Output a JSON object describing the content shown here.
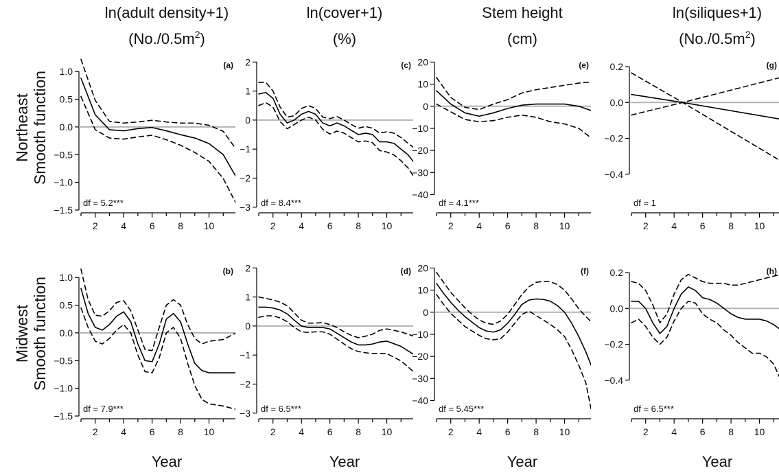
{
  "column_headers": [
    {
      "line1": "ln(adult density+1)",
      "line2": "(No./0.5m",
      "sup": "2",
      "tail": ")"
    },
    {
      "line1": "ln(cover+1)",
      "line2": "(%)",
      "sup": "",
      "tail": ""
    },
    {
      "line1": "Stem height",
      "line2": "(cm)",
      "sup": "",
      "tail": ""
    },
    {
      "line1": "ln(siliques+1)",
      "line2": "(No./0.5m",
      "sup": "2",
      "tail": ")"
    }
  ],
  "row_headers": [
    {
      "region": "Northeast",
      "label": "Smooth function"
    },
    {
      "region": "Midwest",
      "label": "Smooth function"
    }
  ],
  "x_axis_label": "Year",
  "style": {
    "line_color": "#000000",
    "zero_line_color": "#b3b3b3"
  },
  "chart_data": [
    {
      "type": "line",
      "tag": "(a)",
      "df_label": "df = 5.2***",
      "xlim": [
        1,
        12
      ],
      "ylim": [
        -1.5,
        1.25
      ],
      "yticks": [
        1.0,
        0.5,
        0.0,
        -0.5,
        -1.0,
        -1.5
      ],
      "ytick_labels": [
        "1.0",
        "0.5",
        "0.0",
        "−0.5",
        "−1.0",
        "−1.5"
      ],
      "xticks": [
        2,
        4,
        6,
        8,
        10
      ],
      "xtick_labels": [
        "2",
        "4",
        "6",
        "8",
        "10"
      ],
      "x": [
        1,
        2,
        3,
        4,
        5,
        6,
        7,
        8,
        9,
        10,
        11,
        11.9
      ],
      "series": [
        {
          "role": "estimate",
          "values": [
            0.88,
            0.22,
            -0.05,
            -0.07,
            -0.03,
            -0.01,
            -0.07,
            -0.14,
            -0.2,
            -0.3,
            -0.5,
            -0.9
          ]
        },
        {
          "role": "upper",
          "values": [
            1.22,
            0.48,
            0.1,
            0.07,
            0.09,
            0.12,
            0.09,
            0.07,
            0.07,
            0.03,
            -0.08,
            -0.4
          ]
        },
        {
          "role": "lower",
          "values": [
            0.55,
            -0.05,
            -0.2,
            -0.22,
            -0.18,
            -0.15,
            -0.23,
            -0.33,
            -0.46,
            -0.62,
            -0.93,
            -1.38
          ]
        }
      ]
    },
    {
      "type": "line",
      "tag": "(b)",
      "df_label": "df = 7.9***",
      "xlim": [
        1,
        12
      ],
      "ylim": [
        -1.5,
        1.25
      ],
      "yticks": [
        1.0,
        0.5,
        0.0,
        -0.5,
        -1.0,
        -1.5
      ],
      "ytick_labels": [
        "1.0",
        "0.5",
        "0.0",
        "−0.5",
        "−1.0",
        "−1.5"
      ],
      "xticks": [
        2,
        4,
        6,
        8,
        10
      ],
      "xtick_labels": [
        "2",
        "4",
        "6",
        "8",
        "10"
      ],
      "x": [
        1,
        1.5,
        2,
        2.5,
        3,
        3.5,
        4,
        4.5,
        5,
        5.5,
        6,
        6.5,
        7,
        7.5,
        8,
        8.5,
        9,
        9.5,
        10,
        11,
        11.9
      ],
      "series": [
        {
          "role": "estimate",
          "values": [
            0.8,
            0.35,
            0.1,
            0.05,
            0.15,
            0.3,
            0.38,
            0.2,
            -0.2,
            -0.5,
            -0.52,
            -0.2,
            0.25,
            0.35,
            0.2,
            -0.2,
            -0.55,
            -0.68,
            -0.72,
            -0.72,
            -0.72
          ]
        },
        {
          "role": "upper",
          "values": [
            1.15,
            0.6,
            0.32,
            0.3,
            0.4,
            0.55,
            0.58,
            0.4,
            0.05,
            -0.3,
            -0.32,
            0.1,
            0.5,
            0.6,
            0.5,
            0.15,
            -0.1,
            -0.2,
            -0.15,
            -0.12,
            0.0
          ]
        },
        {
          "role": "lower",
          "values": [
            0.45,
            0.1,
            -0.15,
            -0.2,
            -0.1,
            0.05,
            0.15,
            0.0,
            -0.4,
            -0.7,
            -0.72,
            -0.45,
            0.0,
            0.1,
            -0.1,
            -0.55,
            -0.95,
            -1.2,
            -1.28,
            -1.32,
            -1.38
          ]
        }
      ]
    },
    {
      "type": "line",
      "tag": "(c)",
      "df_label": "df = 8.4***",
      "xlim": [
        1,
        12
      ],
      "ylim": [
        -3.1,
        2.15
      ],
      "yticks": [
        2,
        1,
        0,
        -1,
        -2,
        -3
      ],
      "ytick_labels": [
        "2",
        "1",
        "0",
        "−1",
        "−2",
        "−3"
      ],
      "xticks": [
        2,
        4,
        6,
        8,
        10
      ],
      "xtick_labels": [
        "2",
        "4",
        "6",
        "8",
        "10"
      ],
      "x": [
        1,
        1.5,
        2,
        2.5,
        3,
        3.5,
        4,
        4.5,
        5,
        5.5,
        6,
        6.5,
        7,
        7.5,
        8,
        8.5,
        9,
        9.5,
        10,
        10.5,
        11,
        11.5,
        11.9
      ],
      "series": [
        {
          "role": "estimate",
          "values": [
            0.9,
            0.95,
            0.75,
            0.2,
            -0.1,
            0.0,
            0.2,
            0.3,
            0.2,
            -0.1,
            -0.2,
            -0.1,
            -0.2,
            -0.35,
            -0.5,
            -0.45,
            -0.5,
            -0.75,
            -0.75,
            -0.8,
            -1.0,
            -1.2,
            -1.45
          ]
        },
        {
          "role": "upper",
          "values": [
            1.3,
            1.3,
            1.0,
            0.45,
            0.1,
            0.15,
            0.4,
            0.5,
            0.4,
            0.1,
            0.05,
            0.12,
            0.0,
            -0.15,
            -0.28,
            -0.22,
            -0.28,
            -0.45,
            -0.4,
            -0.45,
            -0.6,
            -0.8,
            -0.95
          ]
        },
        {
          "role": "lower",
          "values": [
            0.5,
            0.6,
            0.45,
            -0.05,
            -0.3,
            -0.15,
            0.0,
            0.1,
            0.0,
            -0.32,
            -0.48,
            -0.38,
            -0.45,
            -0.6,
            -0.75,
            -0.72,
            -0.78,
            -1.05,
            -1.1,
            -1.2,
            -1.4,
            -1.65,
            -1.95
          ]
        }
      ]
    },
    {
      "type": "line",
      "tag": "(d)",
      "df_label": "df = 6.5***",
      "xlim": [
        1,
        12
      ],
      "ylim": [
        -3.1,
        2.15
      ],
      "yticks": [
        2,
        1,
        0,
        -1,
        -2,
        -3
      ],
      "ytick_labels": [
        "2",
        "1",
        "0",
        "−1",
        "−2",
        "−3"
      ],
      "xticks": [
        2,
        4,
        6,
        8,
        10
      ],
      "xtick_labels": [
        "2",
        "4",
        "6",
        "8",
        "10"
      ],
      "x": [
        1,
        1.5,
        2,
        2.5,
        3,
        3.5,
        4,
        4.5,
        5,
        5.5,
        6,
        6.5,
        7,
        7.5,
        8,
        8.5,
        9,
        9.5,
        10,
        11,
        11.9
      ],
      "series": [
        {
          "role": "estimate",
          "values": [
            0.65,
            0.65,
            0.62,
            0.55,
            0.42,
            0.2,
            0.0,
            -0.05,
            -0.05,
            -0.05,
            -0.1,
            -0.25,
            -0.4,
            -0.55,
            -0.65,
            -0.65,
            -0.62,
            -0.55,
            -0.52,
            -0.7,
            -0.98
          ]
        },
        {
          "role": "upper",
          "values": [
            1.0,
            0.95,
            0.9,
            0.82,
            0.7,
            0.45,
            0.2,
            0.1,
            0.1,
            0.12,
            0.05,
            -0.05,
            -0.2,
            -0.32,
            -0.4,
            -0.35,
            -0.28,
            -0.15,
            -0.1,
            -0.2,
            -0.35
          ]
        },
        {
          "role": "lower",
          "values": [
            0.3,
            0.35,
            0.35,
            0.28,
            0.15,
            -0.05,
            -0.2,
            -0.22,
            -0.2,
            -0.2,
            -0.28,
            -0.45,
            -0.62,
            -0.78,
            -0.88,
            -0.92,
            -0.95,
            -0.95,
            -0.95,
            -1.2,
            -1.58
          ]
        }
      ]
    },
    {
      "type": "line",
      "tag": "(e)",
      "df_label": "df = 4.1***",
      "xlim": [
        1,
        12
      ],
      "ylim": [
        -47,
        22
      ],
      "yticks": [
        20,
        10,
        0,
        -10,
        -20,
        -30,
        -40
      ],
      "ytick_labels": [
        "20",
        "10",
        "0",
        "−10",
        "−20",
        "−30",
        "−40"
      ],
      "xticks": [
        2,
        4,
        6,
        8,
        10
      ],
      "xtick_labels": [
        "2",
        "4",
        "6",
        "8",
        "10"
      ],
      "x": [
        1,
        2,
        3,
        4,
        5,
        6,
        7,
        8,
        9,
        10,
        11,
        11.9
      ],
      "series": [
        {
          "role": "estimate",
          "values": [
            7,
            1,
            -3,
            -4.5,
            -3,
            -1,
            0.5,
            1,
            1,
            1,
            0,
            -2
          ]
        },
        {
          "role": "upper",
          "values": [
            13,
            4,
            -0.5,
            -1.5,
            1,
            3,
            6,
            7.5,
            8.5,
            9.5,
            10.5,
            11
          ]
        },
        {
          "role": "lower",
          "values": [
            1,
            -2.5,
            -6,
            -7,
            -6.5,
            -5,
            -4,
            -5,
            -7,
            -8,
            -10,
            -14.5
          ]
        }
      ]
    },
    {
      "type": "line",
      "tag": "(f)",
      "df_label": "df = 5.45***",
      "xlim": [
        1,
        12
      ],
      "ylim": [
        -47,
        22
      ],
      "yticks": [
        20,
        10,
        0,
        -10,
        -20,
        -30,
        -40
      ],
      "ytick_labels": [
        "20",
        "10",
        "0",
        "−10",
        "−20",
        "−30",
        "−40"
      ],
      "xticks": [
        2,
        4,
        6,
        8,
        10
      ],
      "xtick_labels": [
        "2",
        "4",
        "6",
        "8",
        "10"
      ],
      "x": [
        1,
        1.5,
        2,
        2.5,
        3,
        3.5,
        4,
        4.5,
        5,
        5.5,
        6,
        6.5,
        7,
        7.5,
        8,
        8.5,
        9,
        9.5,
        10,
        10.5,
        11,
        11.5,
        11.9
      ],
      "series": [
        {
          "role": "estimate",
          "values": [
            13,
            8.5,
            4.5,
            1,
            -2,
            -4.5,
            -7,
            -8.5,
            -9,
            -8,
            -5,
            -1,
            3.5,
            5.5,
            6,
            5.8,
            5,
            3,
            0,
            -5,
            -11,
            -18,
            -24.5
          ]
        },
        {
          "role": "upper",
          "values": [
            18,
            13.5,
            9,
            5.5,
            2,
            -1,
            -3.5,
            -5,
            -5.5,
            -4,
            -1,
            3.5,
            8,
            11.5,
            13.5,
            14,
            13.8,
            12.5,
            10,
            6,
            1.5,
            -2,
            -4.5
          ]
        },
        {
          "role": "lower",
          "values": [
            8,
            3.5,
            -0.5,
            -3.5,
            -6.5,
            -8.5,
            -10.5,
            -12,
            -12.5,
            -12,
            -9,
            -5,
            -1,
            0.5,
            -1.5,
            -3.5,
            -5.5,
            -8,
            -11,
            -17,
            -24,
            -32,
            -45
          ]
        }
      ]
    },
    {
      "type": "line",
      "tag": "(g)",
      "df_label": "df = 1",
      "xlim": [
        1,
        12
      ],
      "ylim": [
        -0.6,
        0.25
      ],
      "yticks": [
        0.2,
        0.0,
        -0.2,
        -0.4
      ],
      "ytick_labels": [
        "0.2",
        "0.0",
        "−0.2",
        "−0.4"
      ],
      "xticks": [
        2,
        4,
        6,
        8,
        10
      ],
      "xtick_labels": [
        "2",
        "4",
        "6",
        "8",
        "10"
      ],
      "x": [
        1,
        4.6,
        12
      ],
      "series": [
        {
          "role": "estimate",
          "values": [
            0.045,
            0.0,
            -0.1
          ]
        },
        {
          "role": "upper",
          "values": [
            -0.07,
            0.0,
            0.15
          ]
        },
        {
          "role": "lower",
          "values": [
            0.165,
            0.0,
            -0.35
          ]
        }
      ]
    },
    {
      "type": "line",
      "tag": "(h)",
      "df_label": "df = 6.5***",
      "xlim": [
        1,
        12
      ],
      "ylim": [
        -0.6,
        0.25
      ],
      "yticks": [
        0.2,
        0.0,
        -0.2,
        -0.4
      ],
      "ytick_labels": [
        "0.2",
        "0.0",
        "−0.2",
        "−0.4"
      ],
      "xticks": [
        2,
        4,
        6,
        8,
        10
      ],
      "xtick_labels": [
        "2",
        "4",
        "6",
        "8",
        "10"
      ],
      "x": [
        1,
        1.5,
        2,
        2.5,
        3,
        3.5,
        4,
        4.5,
        5,
        5.5,
        6,
        6.5,
        7,
        7.5,
        8,
        8.5,
        9,
        9.5,
        10,
        10.5,
        11,
        11.5,
        12
      ],
      "series": [
        {
          "role": "estimate",
          "values": [
            0.04,
            0.04,
            0.0,
            -0.08,
            -0.14,
            -0.1,
            0.0,
            0.08,
            0.12,
            0.1,
            0.06,
            0.05,
            0.03,
            0.0,
            -0.03,
            -0.05,
            -0.06,
            -0.06,
            -0.06,
            -0.07,
            -0.09,
            -0.12,
            -0.15
          ]
        },
        {
          "role": "upper",
          "values": [
            0.15,
            0.14,
            0.1,
            0.02,
            -0.08,
            -0.03,
            0.08,
            0.16,
            0.19,
            0.17,
            0.15,
            0.14,
            0.14,
            0.14,
            0.13,
            0.13,
            0.14,
            0.15,
            0.16,
            0.17,
            0.18,
            0.19,
            0.2
          ]
        },
        {
          "role": "lower",
          "values": [
            -0.08,
            -0.06,
            -0.1,
            -0.16,
            -0.2,
            -0.16,
            -0.07,
            0.0,
            0.04,
            0.03,
            -0.03,
            -0.06,
            -0.08,
            -0.12,
            -0.15,
            -0.19,
            -0.22,
            -0.25,
            -0.25,
            -0.27,
            -0.31,
            -0.4,
            -0.52
          ]
        }
      ]
    }
  ]
}
